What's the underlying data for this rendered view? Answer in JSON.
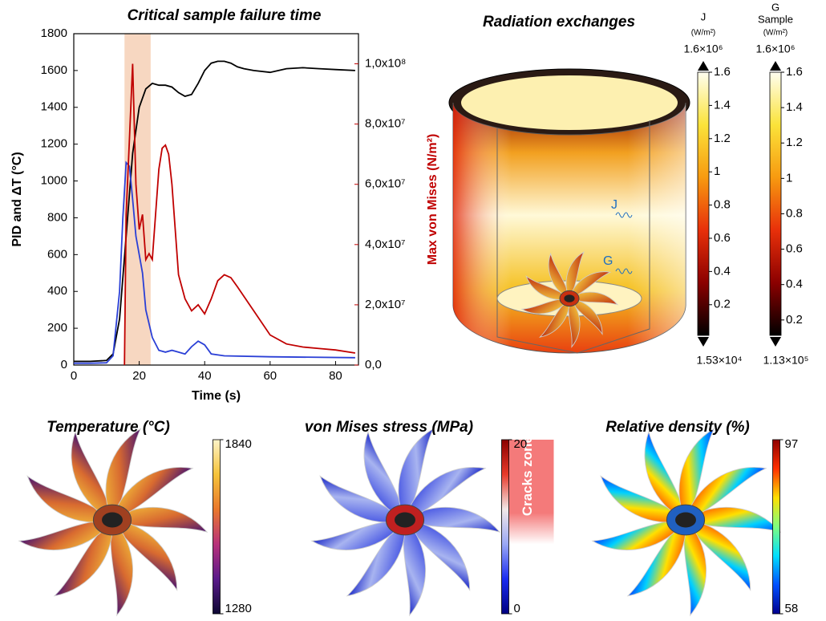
{
  "chart_data": [
    {
      "type": "line",
      "title": "Critical sample failure time",
      "xlabel": "Time (s)",
      "ylabel": "PID and ΔT (°C)",
      "y2label": "Max von Mises (N/m²)",
      "xlim": [
        0,
        87
      ],
      "xticks": [
        0,
        20,
        40,
        60,
        80
      ],
      "ylim": [
        0,
        1800
      ],
      "yticks": [
        0,
        200,
        400,
        600,
        800,
        1000,
        1200,
        1400,
        1600,
        1800
      ],
      "y2lim": [
        0,
        110000000
      ],
      "y2ticks": [
        {
          "value": 0,
          "label": "0,0"
        },
        {
          "value": 20000000,
          "label": "2,0x10⁷"
        },
        {
          "value": 40000000,
          "label": "4,0x10⁷"
        },
        {
          "value": 60000000,
          "label": "6,0x10⁷"
        },
        {
          "value": 80000000,
          "label": "8,0x10⁷"
        },
        {
          "value": 100000000,
          "label": "1,0x10⁸"
        }
      ],
      "y2color": "#c00000",
      "shaded_range": [
        15.5,
        23.5
      ],
      "shade_color": "#f4c9ac",
      "series": [
        {
          "color": "#000000",
          "x": [
            0,
            5,
            10,
            12,
            14,
            16,
            18,
            20,
            22,
            24,
            26,
            28,
            30,
            32,
            34,
            36,
            38,
            40,
            42,
            44,
            46,
            48,
            50,
            52,
            55,
            60,
            65,
            70,
            75,
            80,
            86
          ],
          "values": [
            20,
            20,
            25,
            60,
            250,
            700,
            1150,
            1400,
            1500,
            1530,
            1520,
            1520,
            1510,
            1480,
            1460,
            1470,
            1530,
            1600,
            1640,
            1650,
            1650,
            1640,
            1620,
            1610,
            1600,
            1590,
            1610,
            1615,
            1610,
            1605,
            1600
          ]
        },
        {
          "color": "#2a3fd6",
          "x": [
            0,
            5,
            10,
            12,
            14,
            15,
            16,
            17,
            18,
            19,
            20,
            21,
            22,
            24,
            26,
            28,
            30,
            32,
            34,
            36,
            38,
            40,
            42,
            46,
            60,
            86
          ],
          "values": [
            10,
            10,
            12,
            50,
            400,
            800,
            1100,
            1080,
            900,
            700,
            600,
            500,
            300,
            150,
            80,
            70,
            80,
            70,
            60,
            100,
            130,
            110,
            60,
            50,
            45,
            40
          ]
        },
        {
          "color": "#c00000",
          "axis": "y2",
          "x": [
            15.5,
            16,
            17,
            18,
            19,
            20,
            21,
            22,
            23,
            24,
            25,
            26,
            27,
            28,
            29,
            30,
            31,
            32,
            34,
            36,
            38,
            40,
            42,
            44,
            46,
            48,
            50,
            55,
            60,
            65,
            70,
            75,
            80,
            86
          ],
          "values": [
            0,
            50000000,
            75000000,
            100000000,
            60000000,
            45000000,
            50000000,
            35000000,
            37000000,
            35000000,
            50000000,
            65000000,
            72000000,
            73000000,
            70000000,
            60000000,
            45000000,
            30000000,
            22000000,
            18000000,
            20000000,
            17000000,
            22000000,
            28000000,
            30000000,
            29000000,
            26000000,
            18000000,
            10000000,
            7000000,
            6000000,
            5500000,
            5000000,
            4000000
          ]
        }
      ]
    },
    {
      "type": "colorbar",
      "title": "J",
      "unit": "(W/m²)",
      "top_label": "1.6×10⁶",
      "bottom_label": "1.53×10⁴",
      "ylim": [
        0.0153,
        1.6
      ],
      "yticks": [
        0.2,
        0.4,
        0.6,
        0.8,
        1,
        1.2,
        1.4,
        1.6
      ],
      "colors": [
        "#000000",
        "#8b0000",
        "#e8300a",
        "#f79a10",
        "#fbe33a",
        "#fffef0"
      ]
    },
    {
      "type": "colorbar",
      "title": "G",
      "subtitle": "Sample",
      "unit": "(W/m²)",
      "top_label": "1.6×10⁶",
      "bottom_label": "1.13×10⁵",
      "ylim": [
        0.113,
        1.6
      ],
      "yticks": [
        0.2,
        0.4,
        0.6,
        0.8,
        1,
        1.2,
        1.4,
        1.6
      ],
      "colors": [
        "#000000",
        "#8b0000",
        "#e8300a",
        "#f79a10",
        "#fbe33a",
        "#fffef0"
      ]
    },
    {
      "type": "colorbar",
      "title": "Temperature (°C)",
      "ylim": [
        1280,
        1840
      ],
      "yticks": [
        1280,
        1840
      ],
      "colors": [
        "#0d0833",
        "#5a1a8a",
        "#b8327a",
        "#e9782c",
        "#f5c33a",
        "#fdf3c8"
      ]
    },
    {
      "type": "colorbar",
      "title": "von Mises stress (MPa)",
      "ylim": [
        0,
        20
      ],
      "yticks": [
        0,
        20
      ],
      "colors": [
        "#000080",
        "#1a2cf0",
        "#9aa8f5",
        "#f2e8e8",
        "#e83a2a",
        "#8b0000"
      ],
      "annotation": "Cracks zone",
      "shaded_range": [
        8,
        20
      ],
      "shade_color": "#f47a7a"
    },
    {
      "type": "colorbar",
      "title": "Relative density (%)",
      "ylim": [
        58,
        97
      ],
      "yticks": [
        58,
        97
      ],
      "colors": [
        "#00008f",
        "#0050ff",
        "#00dfff",
        "#7fff7f",
        "#ffdf00",
        "#ff3000",
        "#8f0000"
      ]
    }
  ],
  "radiation": {
    "title": "Radiation exchanges",
    "labels": [
      "J",
      "G"
    ]
  }
}
